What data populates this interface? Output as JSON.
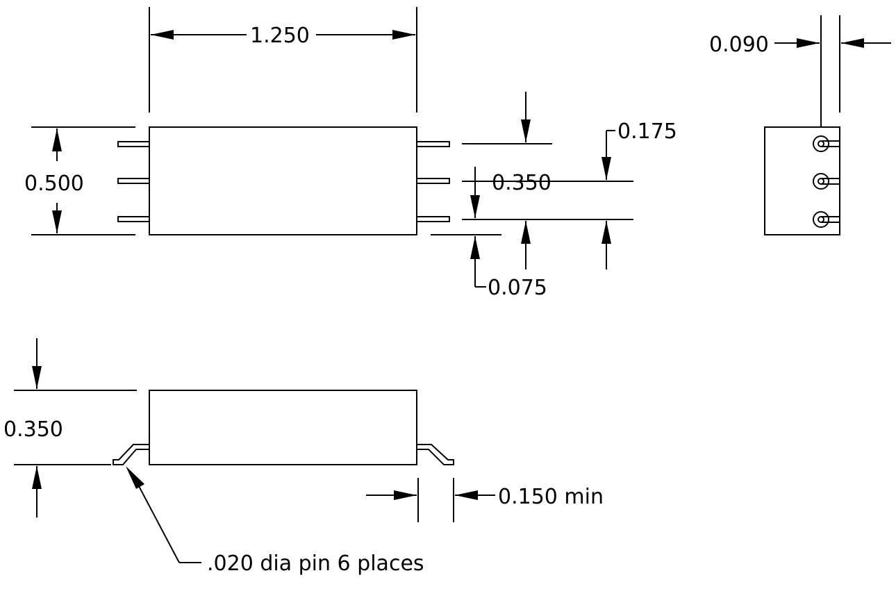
{
  "dimensions": {
    "body_length": "1.250",
    "side_width": "0.090",
    "body_width": "0.500",
    "pin_offset": "0.175",
    "pin_spacing": "0.350",
    "pin_edge": "0.075",
    "body_height": "0.350",
    "lead_length": "0.150 min",
    "pin_note": ".020 dia pin 6 places"
  },
  "colors": {
    "line": "#000000",
    "background": "#ffffff"
  }
}
